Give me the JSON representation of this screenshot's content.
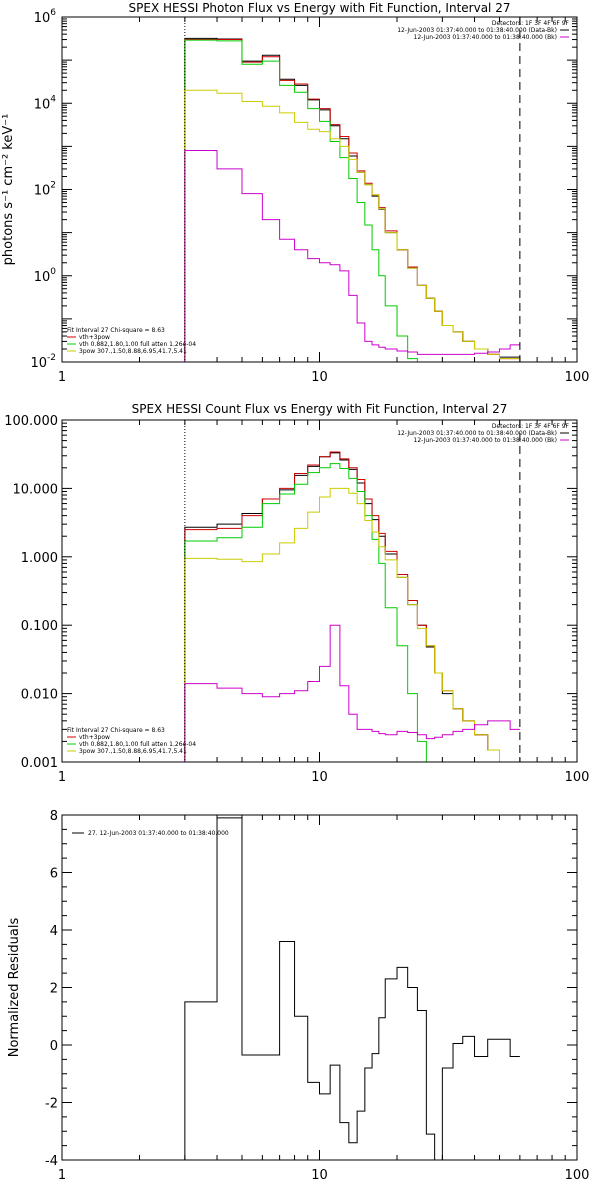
{
  "chart_data": [
    {
      "type": "line",
      "title": "SPEX HESSI Photon Flux vs Energy with Fit Function, Interval 27",
      "ylabel": "photons s⁻¹ cm⁻² keV⁻¹",
      "xlabel": "",
      "xscale": "log",
      "yscale": "log",
      "xlim": [
        1,
        100
      ],
      "ylim": [
        0.01,
        1000000
      ],
      "x_ticks": [
        {
          "value": 1,
          "label": "1"
        },
        {
          "value": 10,
          "label": "10"
        },
        {
          "value": 100,
          "label": "100"
        }
      ],
      "y_ticks": [
        {
          "value": 0.01,
          "label": "10⁻²"
        },
        {
          "value": 1,
          "label": "10⁰"
        },
        {
          "value": 100,
          "label": "10²"
        },
        {
          "value": 10000,
          "label": "10⁴"
        },
        {
          "value": 1000000,
          "label": "10⁶"
        }
      ],
      "energy_edges": [
        3,
        4,
        5,
        6,
        7,
        8,
        9,
        10,
        11,
        12,
        13,
        14,
        15,
        16,
        17,
        18,
        20,
        22,
        24,
        26,
        28,
        30,
        33,
        36,
        40,
        45,
        50,
        55,
        60
      ],
      "detectors_line": "Detectors: 1F 3F 4F 6F 9F",
      "legend_right": [
        {
          "label": "12-Jun-2003 01:37:40.000 to 01:38:40.000 (Data-Bk)",
          "color": "#000000"
        },
        {
          "label": "12-Jun-2003 01:37:40.000 to 01:38:40.000 (Bk)",
          "color": "#cc00cc"
        }
      ],
      "fit_info": "Fit Interval 27   Chi-square = 8.63",
      "legend_left": [
        {
          "label": "vth+3pow",
          "color": "#cc0000"
        },
        {
          "label": "vth 0.882,1.80,1.00  full atten 1.26e-04",
          "color": "#00cc00"
        },
        {
          "label": "3pow 307.,1.50,8.88,6.95,41.7,5.41",
          "color": "#cccc00"
        }
      ],
      "vlines": [
        {
          "x": 3,
          "style": "dotted"
        },
        {
          "x": 60,
          "style": "dashed"
        }
      ],
      "series": [
        {
          "role": "data-bk",
          "color": "#000000",
          "values": [
            320000,
            310000,
            95000,
            130000,
            36000,
            26000,
            12000,
            7000,
            3000,
            1500,
            600,
            250,
            130,
            70,
            35,
            10,
            4,
            1.5,
            0.6,
            0.3,
            0.15,
            0.07,
            0.05,
            0.03,
            0.02,
            0.015,
            0.013,
            0.013
          ]
        },
        {
          "role": "total-fit",
          "color": "#cc0000",
          "values": [
            300000,
            300000,
            90000,
            120000,
            34000,
            28000,
            12500,
            7500,
            3200,
            1700,
            700,
            270,
            140,
            75,
            38,
            11,
            4,
            1.6,
            0.6,
            0.3,
            0.15,
            0.07,
            0.05,
            0.03,
            0.02,
            0.015,
            0.012,
            0.012
          ]
        },
        {
          "role": "vth",
          "color": "#00cc00",
          "values": [
            290000,
            280000,
            80000,
            95000,
            26000,
            18000,
            7500,
            3800,
            1300,
            550,
            180,
            50,
            15,
            4,
            1,
            0.2,
            0.04,
            0.012,
            0.01
          ]
        },
        {
          "role": "3pow",
          "color": "#cccc00",
          "values": [
            20000,
            17000,
            11000,
            8500,
            6000,
            3600,
            2500,
            2200,
            1500,
            1000,
            500,
            250,
            130,
            75,
            36,
            10,
            4,
            1.5,
            0.6,
            0.3,
            0.15,
            0.07,
            0.05,
            0.03,
            0.02,
            0.015,
            0.012,
            0.012
          ]
        },
        {
          "role": "bk",
          "color": "#cc00cc",
          "values": [
            800,
            300,
            80,
            20,
            7,
            4,
            2.5,
            2,
            1.8,
            1.3,
            0.35,
            0.08,
            0.03,
            0.025,
            0.022,
            0.02,
            0.018,
            0.017,
            0.015,
            0.015,
            0.015,
            0.015,
            0.015,
            0.015,
            0.016,
            0.017,
            0.02,
            0.025
          ]
        }
      ]
    },
    {
      "type": "line",
      "title": "SPEX HESSI Count Flux vs Energy with Fit Function, Interval 27",
      "ylabel": "",
      "xlabel": "",
      "xscale": "log",
      "yscale": "log",
      "xlim": [
        1,
        100
      ],
      "ylim": [
        0.001,
        100
      ],
      "x_ticks": [
        {
          "value": 1,
          "label": "1"
        },
        {
          "value": 10,
          "label": "10"
        },
        {
          "value": 100,
          "label": "100"
        }
      ],
      "y_ticks": [
        {
          "value": 0.001,
          "label": "0.001"
        },
        {
          "value": 0.01,
          "label": "0.010"
        },
        {
          "value": 0.1,
          "label": "0.100"
        },
        {
          "value": 1,
          "label": "1.000"
        },
        {
          "value": 10,
          "label": "10.000"
        },
        {
          "value": 100,
          "label": "100.000"
        }
      ],
      "energy_edges": [
        3,
        4,
        5,
        6,
        7,
        8,
        9,
        10,
        11,
        12,
        13,
        14,
        15,
        16,
        17,
        18,
        20,
        22,
        24,
        26,
        28,
        30,
        33,
        36,
        40,
        45,
        50,
        55,
        60,
        65,
        70
      ],
      "detectors_line": "Detectors: 1F 3F 4F 6F 9F",
      "legend_right": [
        {
          "label": "12-Jun-2003 01:37:40.000 to 01:38:40.000 (Data-Bk)",
          "color": "#000000"
        },
        {
          "label": "12-Jun-2003 01:37:40.000 to 01:38:40.000 (Bk)",
          "color": "#cc00cc"
        }
      ],
      "fit_info": "Fit Interval 27   Chi-square = 8.63",
      "legend_left": [
        {
          "label": "vth+3pow",
          "color": "#cc0000"
        },
        {
          "label": "vth 0.882,1.80,1.00  full atten 1.26e-04",
          "color": "#00cc00"
        },
        {
          "label": "3pow 307.,1.50,8.88,6.95,41.7,5.41",
          "color": "#cccc00"
        }
      ],
      "vlines": [
        {
          "x": 3,
          "style": "dotted"
        },
        {
          "x": 60,
          "style": "dashed"
        }
      ],
      "series": [
        {
          "role": "data-bk",
          "color": "#000000",
          "values": [
            2.7,
            3.0,
            4.3,
            7.0,
            9.5,
            15.5,
            21.0,
            29.0,
            33.0,
            26.0,
            19.0,
            12.0,
            6.0,
            3.5,
            2.0,
            1.1,
            0.5,
            0.2,
            0.1,
            0.048,
            0.02,
            0.01,
            0.006,
            0.004,
            0.0025,
            0.0015
          ]
        },
        {
          "role": "total-fit",
          "color": "#cc0000",
          "values": [
            2.5,
            2.6,
            4.0,
            7.0,
            10.0,
            16.5,
            22.0,
            29.0,
            34.0,
            27.0,
            20.0,
            13.5,
            7.0,
            4.0,
            2.2,
            1.2,
            0.55,
            0.23,
            0.1,
            0.05,
            0.02,
            0.011,
            0.006,
            0.004,
            0.0025,
            0.0015
          ]
        },
        {
          "role": "vth",
          "color": "#00cc00",
          "values": [
            1.7,
            1.9,
            2.7,
            6.0,
            8.3,
            11.5,
            17.0,
            20.0,
            23.0,
            19.5,
            14.0,
            9.0,
            4.0,
            1.8,
            0.8,
            0.18,
            0.05,
            0.01,
            0.002,
            0.0007
          ]
        },
        {
          "role": "3pow",
          "color": "#cccc00",
          "values": [
            0.95,
            0.92,
            0.85,
            1.1,
            1.6,
            2.6,
            4.5,
            7.5,
            10.0,
            10.0,
            8.5,
            6.0,
            3.4,
            2.3,
            1.4,
            0.9,
            0.5,
            0.2,
            0.09,
            0.05,
            0.02,
            0.011,
            0.006,
            0.004,
            0.0025,
            0.0015,
            0.001,
            0.0008,
            0.0005
          ]
        },
        {
          "role": "bk",
          "color": "#cc00cc",
          "values": [
            0.014,
            0.012,
            0.01,
            0.009,
            0.01,
            0.011,
            0.015,
            0.025,
            0.1,
            0.013,
            0.005,
            0.003,
            0.003,
            0.0028,
            0.0026,
            0.0025,
            0.0028,
            0.0027,
            0.0025,
            0.0022,
            0.0023,
            0.0025,
            0.0028,
            0.003,
            0.0035,
            0.004,
            0.004,
            0.003
          ]
        }
      ]
    },
    {
      "type": "line",
      "title": "",
      "ylabel": "Normalized Residuals",
      "xlabel": "",
      "xscale": "log",
      "yscale": "linear",
      "xlim": [
        1,
        100
      ],
      "ylim": [
        -4,
        8
      ],
      "x_ticks": [
        {
          "value": 1,
          "label": "1"
        },
        {
          "value": 10,
          "label": "10"
        },
        {
          "value": 100,
          "label": "100"
        }
      ],
      "y_ticks": [
        {
          "value": -4,
          "label": "-4"
        },
        {
          "value": -2,
          "label": "-2"
        },
        {
          "value": 0,
          "label": "0"
        },
        {
          "value": 2,
          "label": "2"
        },
        {
          "value": 4,
          "label": "4"
        },
        {
          "value": 6,
          "label": "6"
        },
        {
          "value": 8,
          "label": "8"
        }
      ],
      "energy_edges": [
        3,
        4,
        5,
        6,
        7,
        8,
        9,
        10,
        11,
        12,
        13,
        14,
        15,
        16,
        17,
        18,
        20,
        22,
        24,
        26,
        28,
        30,
        33,
        36,
        40,
        45,
        50,
        55,
        60
      ],
      "legend_right": [],
      "legend_left": [],
      "legend_top": [
        {
          "label": "27. 12-Jun-2003 01:37:40.000 to 01:38:40.000",
          "color": "#000000"
        }
      ],
      "vlines": [],
      "series": [
        {
          "role": "residuals",
          "color": "#000000",
          "values": [
            1.5,
            7.9,
            -0.35,
            -0.35,
            3.6,
            1.0,
            -1.3,
            -1.7,
            -0.7,
            -2.7,
            -3.4,
            -2.3,
            -0.8,
            -0.3,
            0.95,
            2.3,
            2.7,
            2.0,
            1.2,
            -3.1,
            -4.0,
            -0.8,
            0.05,
            0.3,
            -0.4,
            0.2,
            0.2,
            -0.4
          ]
        }
      ]
    }
  ]
}
